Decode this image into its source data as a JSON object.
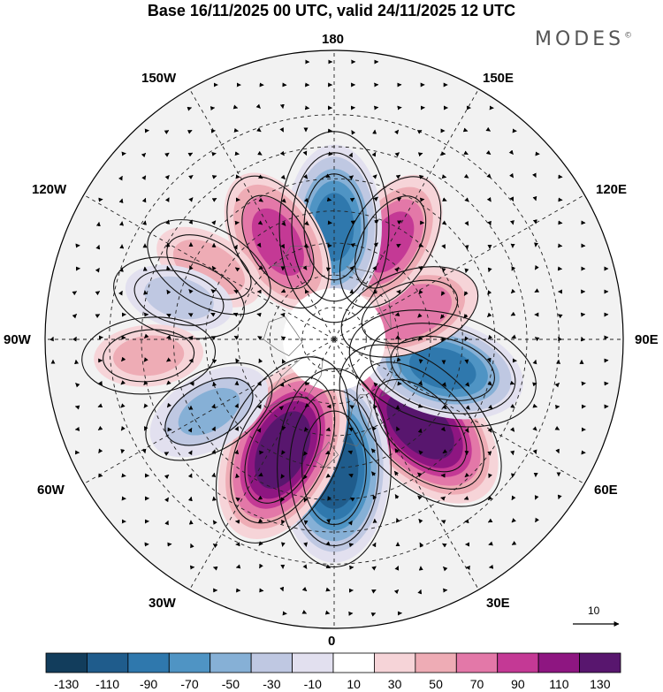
{
  "title": "Base 16/11/2025 00 UTC, valid 24/11/2025 12 UTC",
  "brand": "MODES",
  "brand_mark": "©",
  "longitude_labels": {
    "n180": "180",
    "w150": "150W",
    "e150": "150E",
    "w120": "120W",
    "e120": "120E",
    "w90": "90W",
    "e90": "90E",
    "w60": "60W",
    "e60": "60E",
    "w30": "30W",
    "e30": "30E",
    "n0": "0"
  },
  "vector_reference": {
    "value": "10"
  },
  "colorbar": {
    "labels": [
      "-130",
      "-110",
      "-90",
      "-70",
      "-50",
      "-30",
      "-10",
      "10",
      "30",
      "50",
      "70",
      "90",
      "110",
      "130"
    ],
    "colors": [
      "#123d5c",
      "#1f5c8c",
      "#2f78ad",
      "#4f94c4",
      "#86b0d6",
      "#bfc8e2",
      "#e2e0ef",
      "#ffffff",
      "#f6d4d8",
      "#eeacb5",
      "#e378a8",
      "#c43995",
      "#8e1681",
      "#58166e"
    ]
  },
  "anomaly_centers": [
    {
      "label": "positive",
      "value": 130,
      "lon": 45,
      "lat": 52
    },
    {
      "label": "negative",
      "value": -130,
      "lon": 0,
      "lat": 50
    },
    {
      "label": "positive",
      "value": 130,
      "lon": -25,
      "lat": 52
    },
    {
      "label": "negative",
      "value": -100,
      "lon": 75,
      "lat": 55
    },
    {
      "label": "positive",
      "value": 75,
      "lon": 110,
      "lat": 65
    },
    {
      "label": "positive",
      "value": 80,
      "lon": 150,
      "lat": 55
    },
    {
      "label": "negative",
      "value": -100,
      "lon": 180,
      "lat": 55
    },
    {
      "label": "positive",
      "value": 85,
      "lon": -150,
      "lat": 55
    },
    {
      "label": "positive",
      "value": 45,
      "lon": -120,
      "lat": 45
    },
    {
      "label": "negative",
      "value": -40,
      "lon": -105,
      "lat": 40
    },
    {
      "label": "positive",
      "value": 40,
      "lon": -85,
      "lat": 32
    },
    {
      "label": "negative",
      "value": -60,
      "lon": -60,
      "lat": 45
    }
  ]
}
